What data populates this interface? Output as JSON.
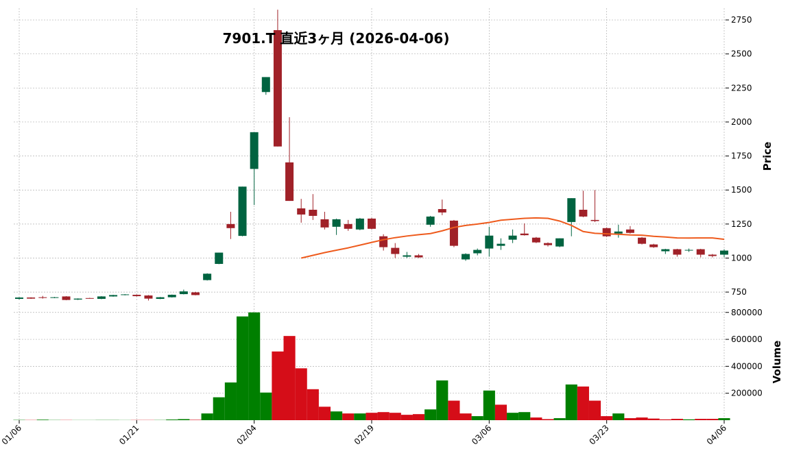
{
  "chart_data": {
    "type": "candlestick",
    "title": "7901.T 直近3ヶ月 (2026-04-06)",
    "categories": [
      "01/06",
      null,
      null,
      null,
      null,
      null,
      null,
      null,
      null,
      null,
      "01/21",
      null,
      null,
      null,
      null,
      null,
      null,
      null,
      null,
      null,
      "02/04",
      null,
      null,
      null,
      null,
      null,
      null,
      null,
      null,
      null,
      "02/19",
      null,
      null,
      null,
      null,
      null,
      null,
      null,
      null,
      null,
      "03/06",
      null,
      null,
      null,
      null,
      null,
      null,
      null,
      null,
      null,
      "03/23",
      null,
      null,
      null,
      null,
      null,
      null,
      null,
      null,
      null,
      "04/06"
    ],
    "open": [
      700,
      710,
      712,
      708,
      718,
      695,
      706,
      700,
      718,
      728,
      730,
      725,
      700,
      712,
      735,
      748,
      838,
      957,
      1250,
      1163,
      1655,
      2220,
      2675,
      1703,
      1365,
      1355,
      1285,
      1230,
      1250,
      1210,
      1290,
      1160,
      1075,
      1010,
      1020,
      1245,
      1360,
      1275,
      990,
      1035,
      1070,
      1090,
      1135,
      1180,
      1150,
      1110,
      1085,
      1265,
      1355,
      1280,
      1220,
      1180,
      1210,
      1150,
      1100,
      1050,
      1065,
      1055,
      1065,
      1025,
      1025
    ],
    "high": [
      712,
      712,
      722,
      714,
      720,
      704,
      708,
      720,
      730,
      735,
      732,
      728,
      714,
      732,
      768,
      752,
      888,
      1040,
      1340,
      1525,
      1925,
      2330,
      2825,
      2035,
      1435,
      1470,
      1340,
      1290,
      1280,
      1295,
      1295,
      1175,
      1110,
      1045,
      1030,
      1310,
      1430,
      1280,
      1035,
      1070,
      1230,
      1145,
      1210,
      1255,
      1155,
      1115,
      1145,
      1440,
      1495,
      1500,
      1225,
      1245,
      1235,
      1155,
      1105,
      1068,
      1068,
      1070,
      1068,
      1030,
      1065
    ],
    "low": [
      695,
      700,
      702,
      705,
      690,
      692,
      702,
      698,
      716,
      726,
      718,
      688,
      698,
      710,
      733,
      726,
      835,
      955,
      1140,
      1160,
      1390,
      2200,
      1820,
      1420,
      1260,
      1280,
      1210,
      1170,
      1200,
      1205,
      1210,
      1055,
      1000,
      1000,
      1000,
      1230,
      1315,
      1080,
      980,
      1020,
      1010,
      1060,
      1110,
      1165,
      1110,
      1085,
      1080,
      1160,
      1300,
      1265,
      1155,
      1150,
      1180,
      1100,
      1075,
      1030,
      1010,
      1045,
      1005,
      1005,
      1005
    ],
    "close": [
      710,
      702,
      708,
      712,
      692,
      702,
      704,
      718,
      728,
      733,
      720,
      702,
      712,
      730,
      755,
      728,
      885,
      1040,
      1220,
      1525,
      1925,
      2330,
      1820,
      1420,
      1320,
      1310,
      1225,
      1285,
      1215,
      1290,
      1215,
      1080,
      1030,
      1020,
      1005,
      1305,
      1335,
      1090,
      1030,
      1060,
      1165,
      1105,
      1165,
      1168,
      1115,
      1095,
      1145,
      1440,
      1305,
      1272,
      1160,
      1195,
      1185,
      1105,
      1080,
      1065,
      1025,
      1060,
      1025,
      1015,
      1055
    ],
    "volume": [
      2000,
      1500,
      4000,
      1500,
      1500,
      1000,
      1000,
      1500,
      1500,
      1000,
      1500,
      1500,
      1500,
      5000,
      8000,
      3000,
      50000,
      170000,
      280000,
      770000,
      800000,
      205000,
      510000,
      625000,
      385000,
      230000,
      100000,
      65000,
      50000,
      50000,
      55000,
      60000,
      55000,
      40000,
      45000,
      80000,
      295000,
      145000,
      50000,
      30000,
      220000,
      115000,
      55000,
      60000,
      20000,
      8000,
      15000,
      265000,
      250000,
      145000,
      30000,
      50000,
      15000,
      20000,
      12000,
      6000,
      10000,
      6000,
      10000,
      10000,
      15000
    ],
    "ma": {
      "color": "#ee5a1c",
      "values": [
        null,
        null,
        null,
        null,
        null,
        null,
        null,
        null,
        null,
        null,
        null,
        null,
        null,
        null,
        null,
        null,
        null,
        null,
        null,
        null,
        null,
        null,
        null,
        null,
        1000,
        1020,
        1040,
        1058,
        1075,
        1095,
        1115,
        1135,
        1150,
        1162,
        1172,
        1180,
        1200,
        1225,
        1240,
        1250,
        1262,
        1278,
        1285,
        1292,
        1295,
        1292,
        1272,
        1240,
        1195,
        1182,
        1178,
        1175,
        1170,
        1168,
        1160,
        1155,
        1148,
        1147,
        1148,
        1148,
        1138
      ]
    },
    "up_color": "#006340",
    "down_color": "#a02128",
    "volume_up_color": "#007f00",
    "volume_down_color": "#d50d18",
    "ylim": [
      680,
      2836
    ],
    "yticks": [
      750,
      1000,
      1250,
      1500,
      1750,
      2000,
      2250,
      2500,
      2750
    ],
    "y_label": "Price",
    "volume_ylim": [
      0,
      870000
    ],
    "volume_yticks": [
      200000,
      400000,
      600000,
      800000
    ],
    "volume_label": "Volume",
    "grid": true
  }
}
